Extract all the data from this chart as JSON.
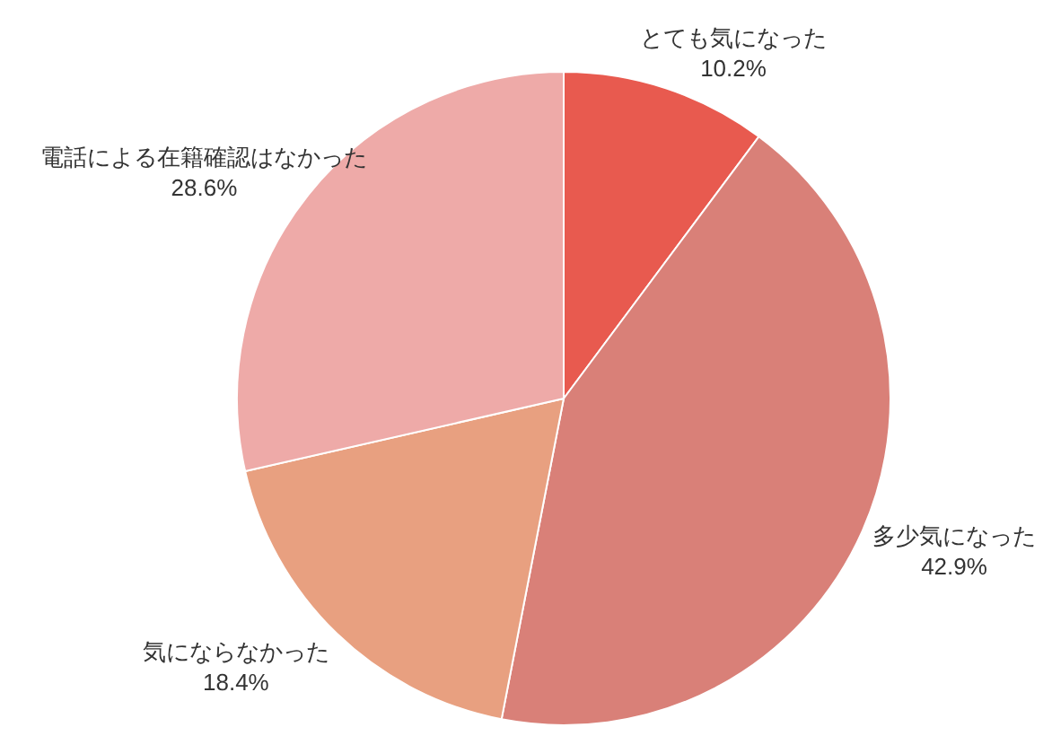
{
  "chart_data": {
    "type": "pie",
    "categories": [
      "とても気になった",
      "多少気になった",
      "気にならなかった",
      "電話による在籍確認はなかった"
    ],
    "values": [
      10.2,
      42.9,
      18.4,
      28.6
    ],
    "colors": [
      "#e85a4f",
      "#d98078",
      "#e8a080",
      "#eeaaa8"
    ],
    "value_labels": [
      "10.2%",
      "42.9%",
      "18.4%",
      "28.6%"
    ]
  }
}
